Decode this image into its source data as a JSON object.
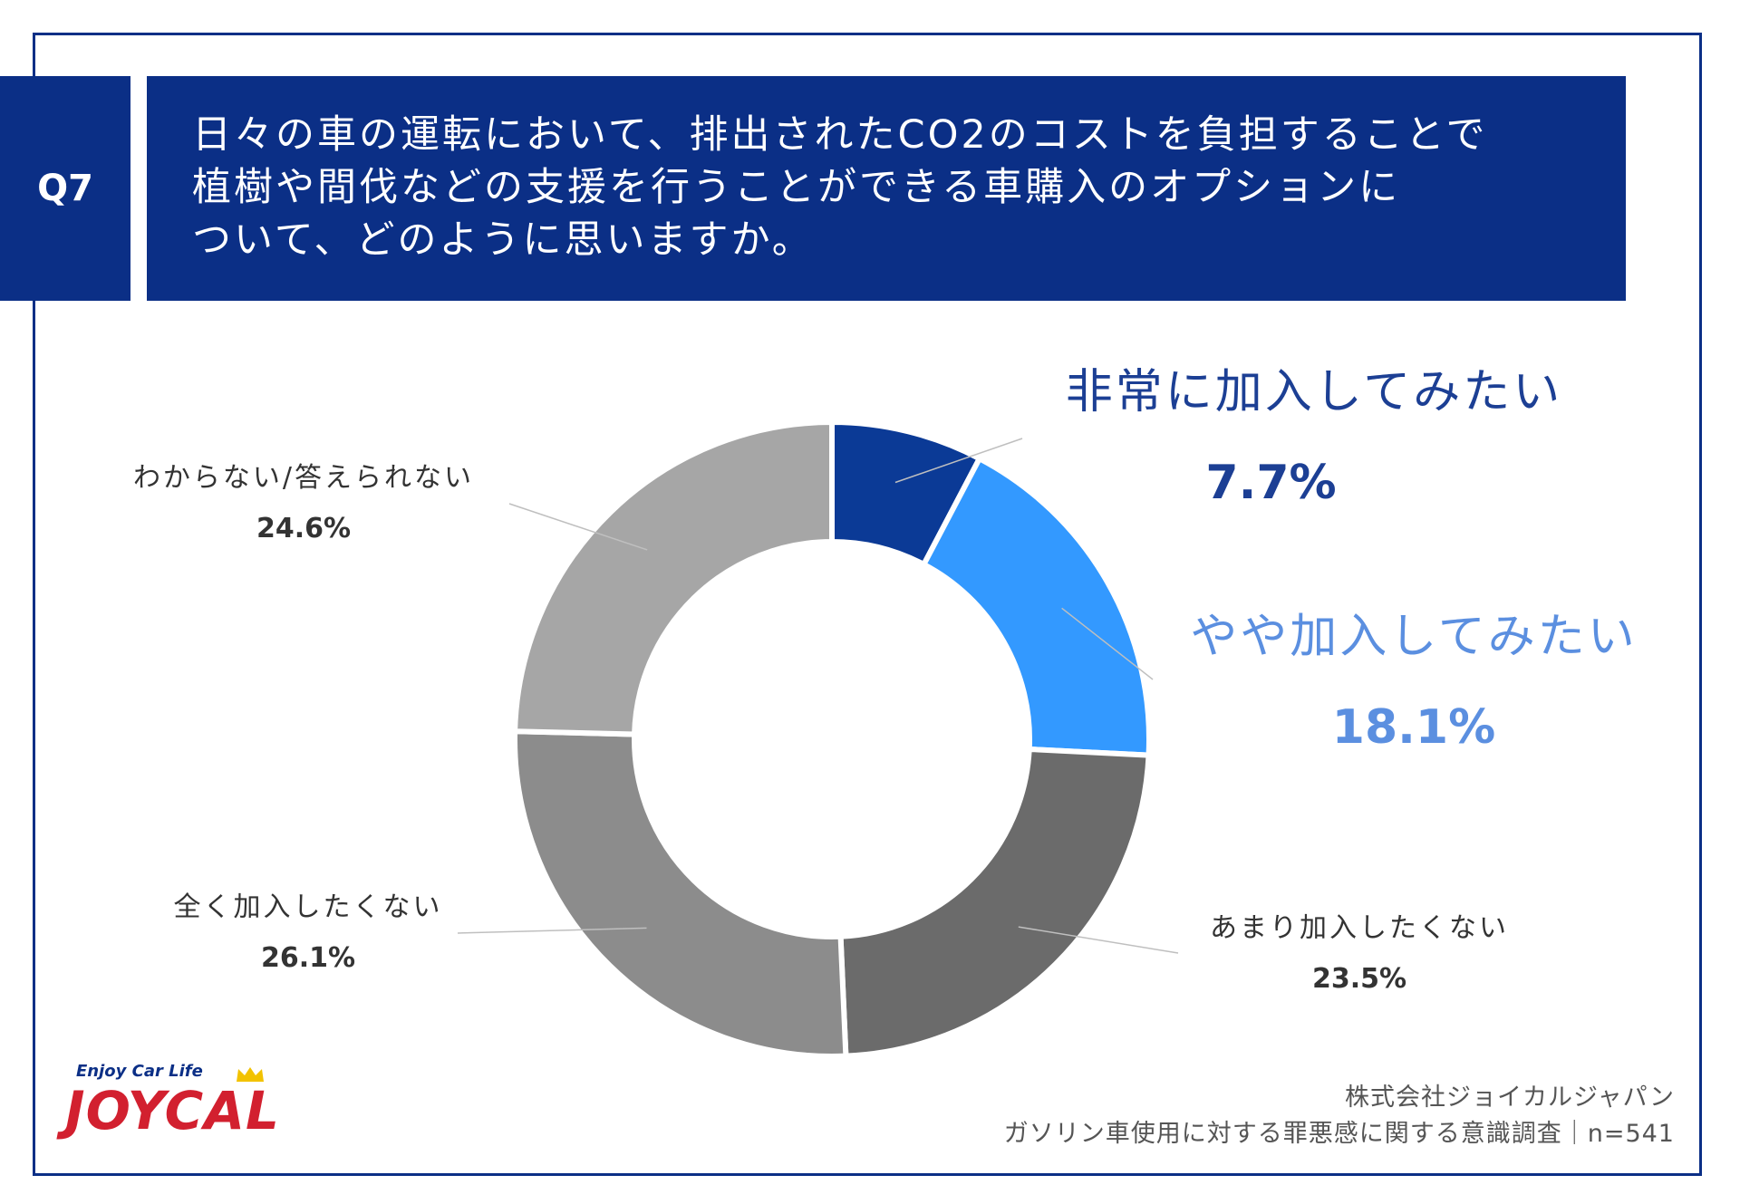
{
  "header": {
    "badge": "Q7",
    "question_lines": [
      "日々の車の運転において、排出されたCO2のコストを負担することで",
      "植樹や間伐などの支援を行うことができる車購入のオプションに",
      "ついて、どのように思いますか。"
    ]
  },
  "chart_data": {
    "type": "pie",
    "style": "donut",
    "title": "",
    "slices": [
      {
        "label": "非常に加入してみたい",
        "value": 7.7,
        "value_label": "7.7%",
        "color": "#0b3a96"
      },
      {
        "label": "やや加入してみたい",
        "value": 18.1,
        "value_label": "18.1%",
        "color": "#3399ff"
      },
      {
        "label": "あまり加入したくない",
        "value": 23.5,
        "value_label": "23.5%",
        "color": "#6b6b6b"
      },
      {
        "label": "全く加入したくない",
        "value": 26.1,
        "value_label": "26.1%",
        "color": "#8c8c8c"
      },
      {
        "label": "わからない/答えられない",
        "value": 24.6,
        "value_label": "24.6%",
        "color": "#a6a6a6"
      }
    ]
  },
  "footer": {
    "logo_tagline": "Enjoy Car Life",
    "logo_word": "JOYCAL",
    "company": "株式会社ジョイカルジャパン",
    "survey": "ガソリン車使用に対する罪悪感に関する意識調査｜n=541"
  },
  "colors": {
    "brand_navy": "#0b2f86",
    "highlight_blue": "#1c3f94",
    "light_blue_text": "#5b8fe0",
    "logo_red": "#d2202f"
  }
}
